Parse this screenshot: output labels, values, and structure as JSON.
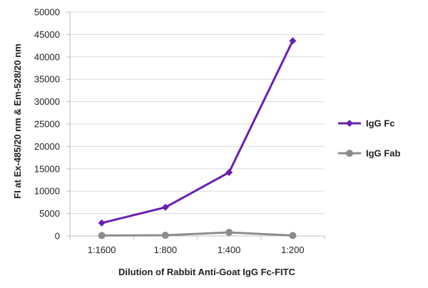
{
  "chart_data": {
    "type": "line",
    "title": "",
    "xlabel": "Dilution of Rabbit Anti-Goat IgG Fc-FITC",
    "ylabel": "FI at Ex-485/20 nm & Em-528/20 nm",
    "categories": [
      "1:1600",
      "1:800",
      "1:400",
      "1:200"
    ],
    "ylim": [
      0,
      50000
    ],
    "yticks": [
      0,
      5000,
      10000,
      15000,
      20000,
      25000,
      30000,
      35000,
      40000,
      45000,
      50000
    ],
    "grid": "horizontal",
    "legend": "right",
    "series": [
      {
        "name": "IgG Fc",
        "color": "#6a1fb3",
        "marker": "diamond",
        "values": [
          2900,
          6400,
          14200,
          43600
        ]
      },
      {
        "name": "IgG Fab",
        "color": "#8c8c8c",
        "marker": "circle",
        "values": [
          100,
          150,
          800,
          100
        ]
      }
    ]
  }
}
